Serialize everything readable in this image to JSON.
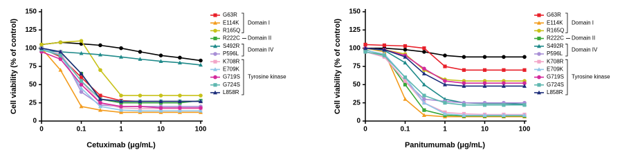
{
  "chart_data": [
    {
      "type": "line",
      "xlabel": "Cetuximab (μg/mL)",
      "ylabel": "Cell viability (% of control)",
      "xscale": "log",
      "x": [
        0.01,
        0.03,
        0.1,
        0.3,
        1,
        3,
        10,
        30,
        100
      ],
      "xlim": [
        0.01,
        100
      ],
      "xticks": [
        {
          "value": 0.01,
          "label": "0"
        },
        0.1,
        1,
        10,
        100
      ],
      "ylim": [
        0,
        150
      ],
      "yticks": [
        0,
        25,
        50,
        75,
        100,
        125,
        150
      ],
      "series": [
        {
          "color": "#000000",
          "values": [
            105,
            108,
            106,
            104,
            100,
            95,
            90,
            87,
            83
          ]
        },
        {
          "name": "G63R",
          "color": "#e8202a",
          "values": [
            100,
            88,
            60,
            35,
            28,
            27,
            27,
            27,
            27
          ]
        },
        {
          "name": "E114K",
          "color": "#f39c1e",
          "values": [
            100,
            70,
            20,
            15,
            12,
            12,
            12,
            12,
            12
          ]
        },
        {
          "name": "R165Q",
          "color": "#c8c21a",
          "values": [
            105,
            108,
            110,
            70,
            35,
            35,
            35,
            35,
            35
          ]
        },
        {
          "name": "R222C",
          "color": "#3aa83a",
          "values": [
            100,
            95,
            65,
            30,
            25,
            25,
            25,
            25,
            28
          ]
        },
        {
          "name": "S492R",
          "color": "#1f8a8a",
          "values": [
            97,
            95,
            93,
            91,
            88,
            85,
            82,
            80,
            77
          ]
        },
        {
          "name": "P596L",
          "color": "#a98fd6",
          "values": [
            100,
            95,
            40,
            22,
            20,
            20,
            20,
            20,
            20
          ]
        },
        {
          "name": "K708R",
          "color": "#f2a6c8",
          "values": [
            98,
            92,
            55,
            25,
            18,
            17,
            17,
            17,
            17
          ]
        },
        {
          "name": "E709K",
          "color": "#8ec5e8",
          "values": [
            100,
            90,
            45,
            20,
            15,
            14,
            14,
            14,
            14
          ]
        },
        {
          "name": "G719S",
          "color": "#d42a9c",
          "values": [
            95,
            85,
            50,
            25,
            20,
            20,
            18,
            18,
            18
          ]
        },
        {
          "name": "G724S",
          "color": "#5fb8b0",
          "values": [
            98,
            90,
            55,
            30,
            27,
            27,
            27,
            27,
            27
          ]
        },
        {
          "name": "L858R",
          "color": "#1c2d7a",
          "values": [
            100,
            95,
            65,
            30,
            27,
            27,
            27,
            27,
            27
          ]
        }
      ],
      "groups": [
        {
          "label": "Domain I",
          "members": [
            "G63R",
            "R165Q"
          ]
        },
        {
          "label": "Domain II",
          "members": [
            "R222C",
            "R222C"
          ]
        },
        {
          "label": "Domain IV",
          "members": [
            "S492R",
            "P596L"
          ]
        },
        {
          "label": "Tyrosine kinase",
          "members": [
            "K708R",
            "L858R"
          ]
        }
      ]
    },
    {
      "type": "line",
      "xlabel": "Panitumumab (μg/mL)",
      "ylabel": "Cell viability (% of control)",
      "xscale": "log",
      "x": [
        0.01,
        0.03,
        0.1,
        0.3,
        1,
        3,
        10,
        30,
        100
      ],
      "xlim": [
        0.01,
        100
      ],
      "xticks": [
        {
          "value": 0.01,
          "label": "0"
        },
        0.1,
        1,
        10,
        100
      ],
      "ylim": [
        0,
        150
      ],
      "yticks": [
        0,
        25,
        50,
        75,
        100,
        125,
        150
      ],
      "series": [
        {
          "color": "#000000",
          "values": [
            100,
            100,
            98,
            95,
            90,
            88,
            88,
            88,
            88
          ]
        },
        {
          "name": "G63R",
          "color": "#e8202a",
          "values": [
            105,
            104,
            103,
            100,
            75,
            70,
            70,
            70,
            70
          ]
        },
        {
          "name": "E114K",
          "color": "#f39c1e",
          "values": [
            100,
            95,
            30,
            8,
            6,
            6,
            6,
            6,
            6
          ]
        },
        {
          "name": "R165Q",
          "color": "#c8c21a",
          "values": [
            100,
            98,
            92,
            70,
            57,
            55,
            55,
            55,
            55
          ]
        },
        {
          "name": "R222C",
          "color": "#3aa83a",
          "values": [
            98,
            90,
            50,
            15,
            8,
            7,
            7,
            7,
            7
          ]
        },
        {
          "name": "S492R",
          "color": "#1f8a8a",
          "values": [
            100,
            97,
            80,
            50,
            30,
            25,
            24,
            24,
            23
          ]
        },
        {
          "name": "P596L",
          "color": "#a98fd6",
          "values": [
            95,
            88,
            55,
            30,
            27,
            25,
            25,
            25,
            25
          ]
        },
        {
          "name": "K708R",
          "color": "#f2a6c8",
          "values": [
            95,
            88,
            55,
            25,
            12,
            10,
            9,
            9,
            9
          ]
        },
        {
          "name": "E709K",
          "color": "#8ec5e8",
          "values": [
            97,
            92,
            60,
            25,
            10,
            8,
            8,
            8,
            8
          ]
        },
        {
          "name": "G719S",
          "color": "#d42a9c",
          "values": [
            100,
            98,
            90,
            72,
            55,
            52,
            52,
            52,
            52
          ]
        },
        {
          "name": "G724S",
          "color": "#5fb8b0",
          "values": [
            95,
            90,
            60,
            35,
            25,
            22,
            22,
            22,
            22
          ]
        },
        {
          "name": "L858R",
          "color": "#1c2d7a",
          "values": [
            100,
            98,
            88,
            65,
            50,
            48,
            48,
            48,
            48
          ]
        }
      ],
      "groups": [
        {
          "label": "Domain I",
          "members": [
            "G63R",
            "R165Q"
          ]
        },
        {
          "label": "Domain II",
          "members": [
            "R222C",
            "R222C"
          ]
        },
        {
          "label": "Domain IV",
          "members": [
            "S492R",
            "P596L"
          ]
        },
        {
          "label": "Tyrosine kinase",
          "members": [
            "K708R",
            "L858R"
          ]
        }
      ]
    }
  ]
}
